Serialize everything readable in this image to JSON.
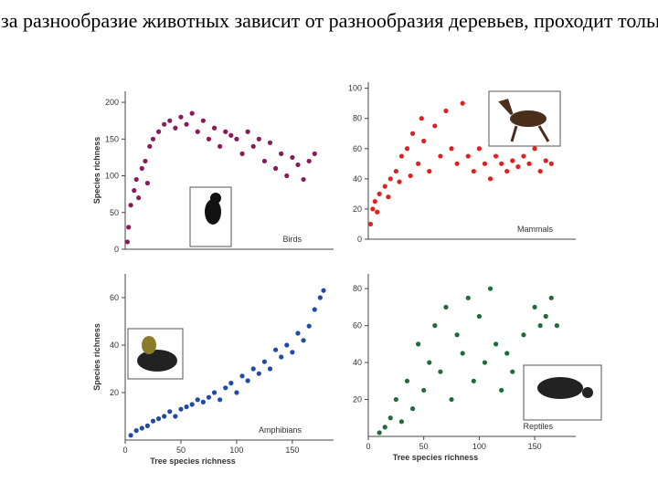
{
  "title": "Простая гипотеза разнообразие животных зависит от разнообразия деревьев, проходит только для амфибий",
  "chart_data": [
    {
      "type": "scatter",
      "title": "Birds",
      "ylabel": "Species richness",
      "color": "#8b1a5a",
      "xlim": [
        0,
        187
      ],
      "ylim": [
        0,
        215
      ],
      "yticks": [
        0,
        50,
        100,
        150,
        200
      ],
      "x": [
        2,
        3,
        5,
        8,
        10,
        12,
        15,
        18,
        20,
        22,
        25,
        30,
        35,
        40,
        45,
        50,
        55,
        60,
        65,
        70,
        75,
        80,
        85,
        90,
        95,
        100,
        105,
        110,
        115,
        120,
        125,
        130,
        135,
        140,
        145,
        150,
        155,
        160,
        165,
        170
      ],
      "values": [
        10,
        30,
        60,
        80,
        95,
        70,
        110,
        120,
        90,
        140,
        150,
        160,
        170,
        175,
        165,
        180,
        170,
        185,
        160,
        175,
        150,
        165,
        140,
        160,
        155,
        150,
        130,
        160,
        140,
        150,
        120,
        145,
        110,
        130,
        100,
        125,
        115,
        95,
        120,
        130
      ]
    },
    {
      "type": "scatter",
      "title": "Mammals",
      "color": "#e02020",
      "xlim": [
        0,
        187
      ],
      "ylim": [
        0,
        104
      ],
      "yticks": [
        0,
        20,
        40,
        60,
        80,
        100
      ],
      "x": [
        2,
        4,
        6,
        8,
        10,
        15,
        18,
        20,
        25,
        28,
        30,
        35,
        38,
        40,
        45,
        48,
        50,
        55,
        60,
        65,
        70,
        75,
        80,
        85,
        90,
        95,
        100,
        105,
        110,
        115,
        120,
        125,
        130,
        135,
        140,
        145,
        150,
        155,
        160,
        165
      ],
      "values": [
        10,
        20,
        25,
        18,
        30,
        35,
        28,
        40,
        45,
        38,
        55,
        60,
        42,
        70,
        50,
        80,
        65,
        45,
        75,
        55,
        85,
        60,
        50,
        90,
        55,
        45,
        60,
        50,
        40,
        55,
        50,
        45,
        52,
        48,
        55,
        50,
        60,
        45,
        52,
        50
      ]
    },
    {
      "type": "scatter",
      "title": "Amphibians",
      "ylabel": "Species richness",
      "xlabel": "Tree species richness",
      "color": "#1f4aa8",
      "xlim": [
        0,
        187
      ],
      "ylim": [
        0,
        70
      ],
      "yticks": [
        20,
        40,
        60
      ],
      "xticks": [
        0,
        50,
        100,
        150
      ],
      "x": [
        5,
        10,
        15,
        20,
        25,
        30,
        35,
        40,
        45,
        50,
        55,
        60,
        65,
        70,
        75,
        80,
        85,
        90,
        95,
        100,
        105,
        110,
        115,
        120,
        125,
        130,
        135,
        140,
        145,
        150,
        155,
        160,
        165,
        170,
        175,
        178
      ],
      "values": [
        2,
        4,
        5,
        6,
        8,
        9,
        10,
        12,
        10,
        13,
        14,
        15,
        17,
        16,
        18,
        20,
        17,
        22,
        24,
        20,
        27,
        25,
        30,
        28,
        33,
        30,
        38,
        35,
        40,
        37,
        45,
        42,
        48,
        55,
        60,
        63
      ]
    },
    {
      "type": "scatter",
      "title": "Reptiles",
      "xlabel": "Tree species richness",
      "color": "#1e6b3c",
      "xlim": [
        0,
        187
      ],
      "ylim": [
        0,
        88
      ],
      "yticks": [
        20,
        40,
        60,
        80
      ],
      "xticks": [
        0,
        50,
        100,
        150
      ],
      "x": [
        10,
        15,
        20,
        25,
        30,
        35,
        40,
        45,
        50,
        55,
        60,
        65,
        70,
        75,
        80,
        85,
        90,
        95,
        100,
        105,
        110,
        115,
        120,
        125,
        130,
        140,
        150,
        155,
        160,
        165,
        170
      ],
      "values": [
        2,
        5,
        10,
        20,
        8,
        30,
        15,
        50,
        25,
        40,
        60,
        35,
        70,
        20,
        55,
        45,
        75,
        30,
        65,
        40,
        80,
        50,
        25,
        45,
        35,
        55,
        70,
        60,
        65,
        75,
        60
      ]
    }
  ]
}
